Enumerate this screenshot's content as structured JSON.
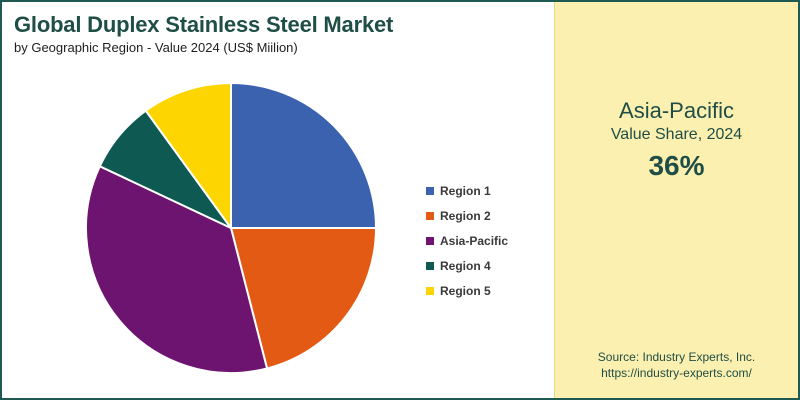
{
  "title": "Global Duplex Stainless Steel Market",
  "subtitle": "by Geographic Region - Value 2024 (US$ Miilion)",
  "chart_data": {
    "type": "pie",
    "categories": [
      "Region 1",
      "Region 2",
      "Asia-Pacific",
      "Region 4",
      "Region 5"
    ],
    "values": [
      25,
      21,
      36,
      8,
      10
    ],
    "colors": [
      "#3a62ae",
      "#e35a14",
      "#6d1470",
      "#0e5a52",
      "#fdd500"
    ],
    "legend_position": "right"
  },
  "highlight": {
    "region": "Asia-Pacific",
    "caption": "Value Share, 2024",
    "value": "36%"
  },
  "source": {
    "line1": "Source: Industry Experts, Inc.",
    "line2": "https://industry-experts.com/"
  }
}
